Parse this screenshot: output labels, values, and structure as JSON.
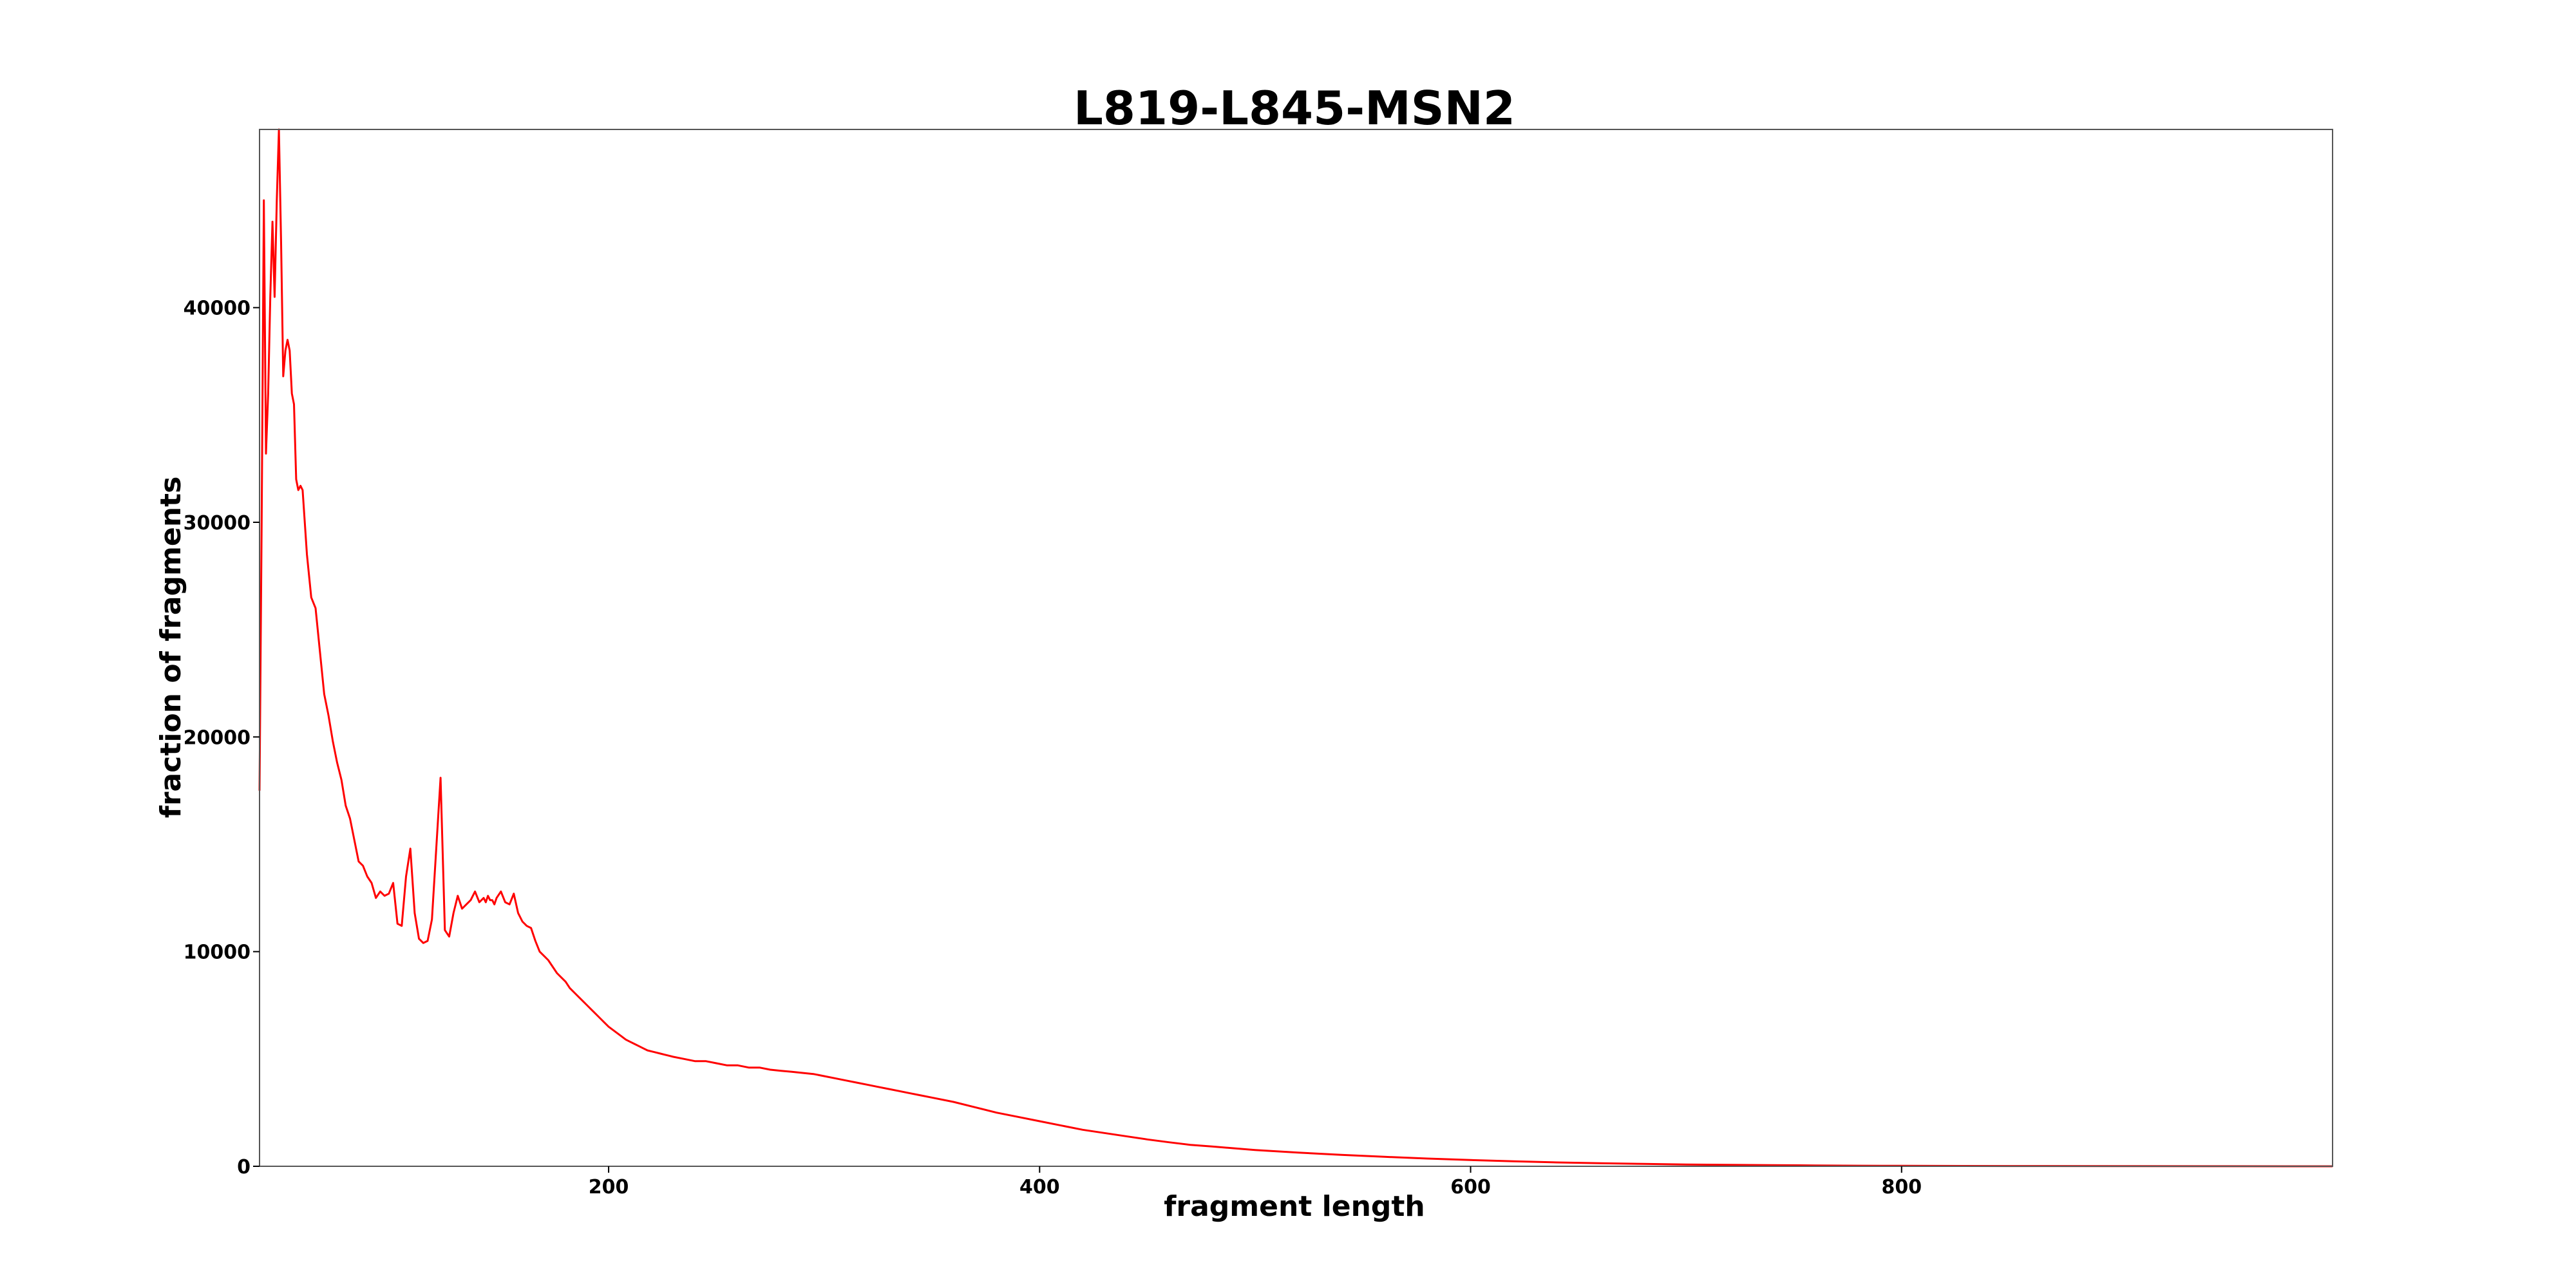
{
  "chart_data": {
    "type": "line",
    "title": "L819-L845-MSN2",
    "xlabel": "fragment length",
    "ylabel": "fraction of fragments",
    "xlim": [
      38,
      1000
    ],
    "ylim": [
      0,
      48300
    ],
    "xticks": [
      200,
      400,
      600,
      800
    ],
    "yticks": [
      0,
      10000,
      20000,
      30000,
      40000
    ],
    "grid": false,
    "legend": "none",
    "series": [
      {
        "color": "#ff0000",
        "x": [
          38,
          39,
          40,
          41,
          42,
          43,
          44,
          45,
          46,
          47,
          48,
          49,
          50,
          51,
          52,
          53,
          54,
          55,
          56,
          57,
          58,
          60,
          62,
          64,
          66,
          68,
          70,
          72,
          74,
          76,
          78,
          80,
          82,
          84,
          86,
          88,
          90,
          92,
          94,
          96,
          98,
          100,
          102,
          104,
          106,
          108,
          110,
          112,
          114,
          116,
          118,
          120,
          122,
          124,
          126,
          128,
          130,
          132,
          134,
          136,
          138,
          140,
          142,
          143,
          144,
          145,
          146,
          147,
          148,
          150,
          152,
          154,
          156,
          158,
          160,
          162,
          164,
          166,
          168,
          170,
          172,
          174,
          176,
          178,
          180,
          182,
          184,
          186,
          188,
          190,
          192,
          194,
          196,
          198,
          200,
          202,
          204,
          206,
          208,
          210,
          212,
          214,
          216,
          218,
          220,
          222,
          224,
          226,
          228,
          230,
          235,
          240,
          245,
          250,
          255,
          260,
          265,
          270,
          275,
          280,
          285,
          290,
          295,
          300,
          305,
          310,
          315,
          320,
          325,
          330,
          335,
          340,
          345,
          350,
          360,
          370,
          380,
          390,
          400,
          410,
          420,
          430,
          440,
          450,
          460,
          470,
          480,
          490,
          500,
          520,
          540,
          560,
          580,
          600,
          620,
          640,
          660,
          680,
          700,
          720,
          740,
          760,
          780,
          800,
          850,
          900,
          950,
          1000
        ],
        "y": [
          17500,
          30000,
          45000,
          33200,
          36000,
          40500,
          44000,
          40500,
          45000,
          48300,
          43000,
          36800,
          38000,
          38500,
          38000,
          36000,
          35500,
          32000,
          31500,
          31700,
          31500,
          28500,
          26500,
          26000,
          24000,
          22000,
          21000,
          19800,
          18800,
          18000,
          16800,
          16200,
          15200,
          14200,
          14000,
          13500,
          13200,
          12500,
          12800,
          12600,
          12700,
          13200,
          11300,
          11200,
          13500,
          14800,
          11800,
          10600,
          10400,
          10500,
          11500,
          14800,
          18100,
          11000,
          10700,
          11800,
          12600,
          12000,
          12200,
          12400,
          12800,
          12300,
          12500,
          12300,
          12600,
          12400,
          12400,
          12200,
          12500,
          12800,
          12300,
          12200,
          12700,
          11800,
          11400,
          11200,
          11100,
          10500,
          10000,
          9800,
          9600,
          9300,
          9000,
          8800,
          8600,
          8300,
          8100,
          7900,
          7700,
          7500,
          7300,
          7100,
          6900,
          6700,
          6500,
          6350,
          6200,
          6050,
          5900,
          5800,
          5700,
          5600,
          5500,
          5400,
          5350,
          5300,
          5250,
          5200,
          5150,
          5100,
          5000,
          4900,
          4900,
          4800,
          4700,
          4700,
          4600,
          4600,
          4500,
          4450,
          4400,
          4350,
          4300,
          4200,
          4100,
          4000,
          3900,
          3800,
          3700,
          3600,
          3500,
          3400,
          3300,
          3200,
          3000,
          2750,
          2500,
          2300,
          2100,
          1900,
          1700,
          1550,
          1400,
          1250,
          1120,
          1000,
          920,
          840,
          760,
          640,
          530,
          440,
          360,
          290,
          230,
          180,
          140,
          110,
          85,
          65,
          50,
          38,
          28,
          20,
          12,
          6,
          2,
          0
        ]
      }
    ]
  }
}
